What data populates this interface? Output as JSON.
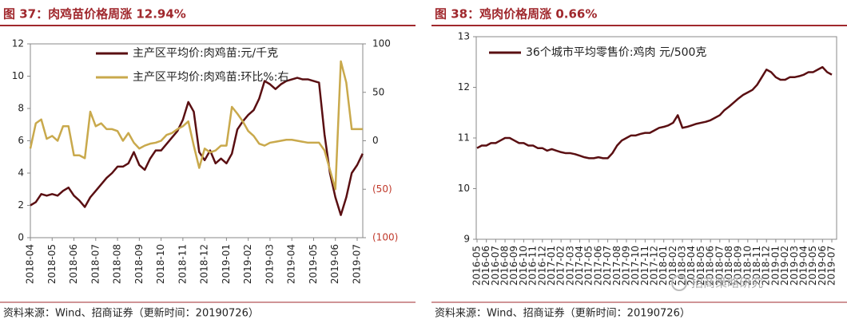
{
  "chart_data": [
    {
      "type": "line",
      "title": "图 37：肉鸡苗价格周涨 12.94%",
      "categories": [
        "2018-04",
        null,
        null,
        null,
        "2018-05",
        null,
        null,
        null,
        "2018-06",
        null,
        null,
        null,
        "2018-07",
        null,
        null,
        null,
        "2018-08",
        null,
        null,
        null,
        "2018-09",
        null,
        null,
        null,
        "2018-10",
        null,
        null,
        null,
        "2018-11",
        null,
        null,
        null,
        "2018-12",
        null,
        null,
        null,
        "2019-01",
        null,
        null,
        null,
        "2019-02",
        null,
        null,
        null,
        "2019-03",
        null,
        null,
        null,
        "2019-04",
        null,
        null,
        null,
        "2019-05",
        null,
        null,
        null,
        "2019-06",
        null,
        null,
        null,
        "2019-07",
        null
      ],
      "series": [
        {
          "name": "主产区平均价:肉鸡苗:元/千克",
          "color": "#5a0f12",
          "values": [
            2.0,
            2.2,
            2.7,
            2.6,
            2.7,
            2.6,
            2.9,
            3.1,
            2.6,
            2.3,
            1.9,
            2.5,
            2.9,
            3.3,
            3.7,
            4.0,
            4.4,
            4.4,
            4.6,
            5.3,
            4.5,
            4.2,
            4.9,
            5.4,
            5.4,
            5.8,
            6.2,
            6.6,
            7.3,
            8.4,
            7.8,
            5.3,
            4.8,
            5.4,
            4.6,
            4.9,
            4.6,
            5.2,
            6.7,
            7.2,
            7.6,
            7.9,
            8.6,
            9.7,
            9.5,
            9.2,
            9.5,
            9.7,
            9.8,
            9.9,
            9.8,
            9.8,
            9.7,
            9.6,
            6.4,
            4.0,
            2.5,
            1.4,
            2.5,
            4.0,
            4.5,
            5.2
          ]
        },
        {
          "name": "主产区平均价:肉鸡苗:环比%:右",
          "color": "#c9a94c",
          "axis": "y2",
          "values": [
            -8,
            18,
            22,
            2,
            5,
            0,
            15,
            15,
            -15,
            -15,
            -18,
            30,
            15,
            18,
            12,
            12,
            10,
            0,
            8,
            -2,
            -8,
            -5,
            -3,
            -2,
            0,
            6,
            8,
            12,
            15,
            20,
            -5,
            -28,
            -8,
            -12,
            -10,
            -5,
            -5,
            35,
            28,
            20,
            10,
            5,
            -3,
            -5,
            -2,
            -1,
            0,
            1,
            1,
            0,
            -1,
            -2,
            -2,
            -2,
            -10,
            -30,
            -50,
            82,
            60,
            12,
            12,
            12
          ]
        }
      ],
      "ylim": [
        0,
        12
      ],
      "yticks": [
        0,
        2,
        4,
        6,
        8,
        10,
        12
      ],
      "y2lim": [
        -100,
        100
      ],
      "y2ticks": [
        {
          "value": -100,
          "label": "(100)"
        },
        {
          "value": -50,
          "label": "(50)"
        },
        0,
        50,
        100
      ],
      "legend": "upper right",
      "source": "资料来源：Wind、招商证券（更新时间：20190726）"
    },
    {
      "type": "line",
      "title": "图 38：鸡肉价格周涨 0.66%",
      "categories": [
        "2016-05",
        null,
        "2016-06",
        null,
        "2016-07",
        null,
        "2016-08",
        null,
        "2016-09",
        null,
        "2016-10",
        null,
        "2016-11",
        null,
        "2016-12",
        null,
        "2017-01",
        null,
        "2017-02",
        null,
        "2017-03",
        null,
        "2017-04",
        null,
        "2017-05",
        null,
        "2017-06",
        null,
        "2017-07",
        null,
        "2017-08",
        null,
        "2017-09",
        null,
        "2017-10",
        null,
        "2017-11",
        null,
        "2017-12",
        null,
        "2018-01",
        null,
        "2018-02",
        null,
        "2018-03",
        null,
        "2018-04",
        null,
        "2018-05",
        null,
        "2018-06",
        null,
        "2018-07",
        null,
        "2018-08",
        null,
        "2018-09",
        null,
        "2018-10",
        null,
        "2018-11",
        null,
        "2018-12",
        null,
        "2019-01",
        null,
        "2019-02",
        null,
        "2019-03",
        null,
        "2019-04",
        null,
        "2019-05",
        null,
        "2019-06",
        null,
        "2019-07"
      ],
      "series": [
        {
          "name": "36个城市平均零售价:鸡肉 元/500克",
          "color": "#5a0f12",
          "values": [
            10.8,
            10.85,
            10.85,
            10.9,
            10.9,
            10.95,
            11.0,
            11.0,
            10.95,
            10.9,
            10.9,
            10.85,
            10.85,
            10.8,
            10.8,
            10.75,
            10.78,
            10.75,
            10.72,
            10.7,
            10.7,
            10.68,
            10.65,
            10.62,
            10.6,
            10.6,
            10.62,
            10.6,
            10.6,
            10.7,
            10.85,
            10.95,
            11.0,
            11.05,
            11.05,
            11.08,
            11.1,
            11.1,
            11.15,
            11.2,
            11.22,
            11.25,
            11.3,
            11.45,
            11.2,
            11.22,
            11.25,
            11.28,
            11.3,
            11.32,
            11.35,
            11.4,
            11.45,
            11.55,
            11.62,
            11.7,
            11.78,
            11.85,
            11.9,
            11.95,
            12.05,
            12.2,
            12.35,
            12.3,
            12.2,
            12.15,
            12.15,
            12.2,
            12.2,
            12.22,
            12.25,
            12.3,
            12.3,
            12.35,
            12.4,
            12.3,
            12.25
          ]
        }
      ],
      "ylim": [
        9,
        13
      ],
      "yticks": [
        9,
        10,
        11,
        12,
        13
      ],
      "legend": "upper left",
      "annotation": "招商策略研究",
      "source": "资料来源：Wind、招商证券（更新时间：20190726）"
    }
  ]
}
